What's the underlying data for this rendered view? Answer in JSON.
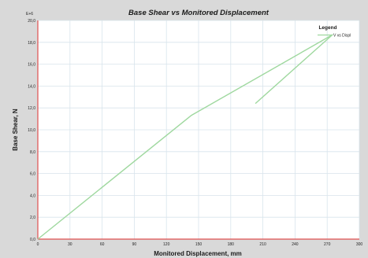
{
  "chart_data": {
    "type": "line",
    "title": "Base Shear vs Monitored Displacement",
    "xlabel": "Monitored Displacement, mm",
    "ylabel": "Base Shear, N",
    "y_multiplier": "E+6",
    "xlim": [
      0,
      300
    ],
    "ylim": [
      0,
      20
    ],
    "x_ticks": [
      "0",
      "30",
      "60",
      "90",
      "120",
      "150",
      "180",
      "210",
      "240",
      "270",
      "300"
    ],
    "y_ticks": [
      "0,0",
      "2,0",
      "4,0",
      "6,0",
      "8,0",
      "10,0",
      "12,0",
      "14,0",
      "16,0",
      "18,0",
      "20,0"
    ],
    "grid": true,
    "legend": {
      "title": "Legend",
      "position": "top-right"
    },
    "series": [
      {
        "name": "V vs Displ",
        "color": "#9fd89f",
        "points": [
          [
            0,
            0
          ],
          [
            143,
            11.3
          ],
          [
            275,
            18.7
          ],
          [
            203,
            12.4
          ]
        ]
      }
    ]
  }
}
